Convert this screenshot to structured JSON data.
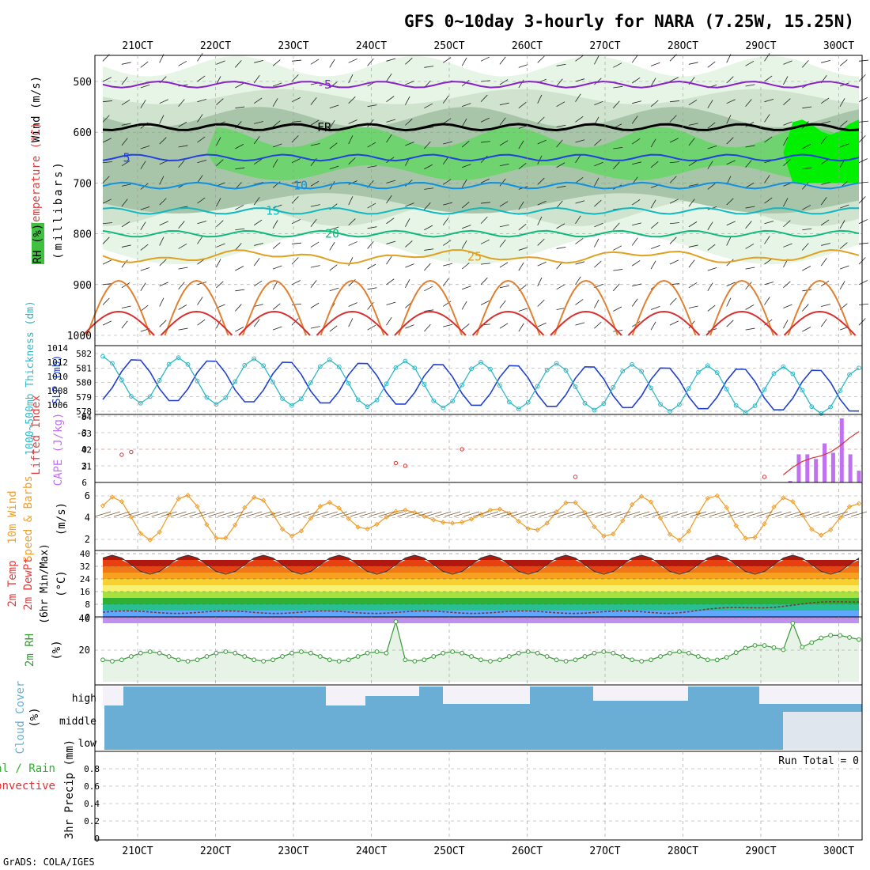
{
  "title": "GFS 0~10day 3-hourly for NARA (7.25W, 15.25N)",
  "credit": "GrADS: COLA/IGES",
  "x_ticks": [
    "21OCT",
    "22OCT",
    "23OCT",
    "24OCT",
    "25OCT",
    "26OCT",
    "27OCT",
    "28OCT",
    "29OCT",
    "30OCT"
  ],
  "colors": {
    "temp_contour": "#1a1aff",
    "rh_light": "#e6f5e6",
    "rh_mid": "#cfe3cf",
    "rh_dark": "#a9c5a9",
    "rh_green": "#6fd36f",
    "rh_bright": "#00f000",
    "slp": "#2040d0",
    "thickness": "#30b8c8",
    "lifted_index": "#d83030",
    "cape": "#c070f0",
    "wind10": "#f0a030",
    "temp2m_bands": [
      "#b0180f",
      "#e84010",
      "#f07818",
      "#f8a020",
      "#f8d030",
      "#f8f070",
      "#a8e040",
      "#30b030",
      "#28c090",
      "#60a8ff",
      "#4070f0",
      "#c090f0"
    ],
    "rh2m": "#3a9a3a",
    "cloud": "#6aaed6",
    "cloud_gap": "#f4f2f8",
    "precip_total": "#30b030",
    "precip_conv": "#e03030"
  },
  "labels": {
    "wind": "Wind (m/s)",
    "temperature": "Temperature (°C)",
    "rh_box": "RH (%)",
    "millibars": "(millibars)",
    "slp": "SLP (mb)",
    "thickness": "1000~500mb Thickness (dm)",
    "cape": "CAPE (J/kg)",
    "lifted_index": "Lifted Index",
    "wind10": "10m Wind",
    "speed_barbs": "Speed & Barbs",
    "ms": "(m/s)",
    "temp2m_1": "2m Temp",
    "temp2m_2": "2m DewPt",
    "temp2m_3": "(6hr Min/Max)",
    "degc": "(°C)",
    "rh2m": "2m RH",
    "pct": "(%)",
    "cloud_cover": "Cloud Cover",
    "precip_total": "Total / Rain",
    "precip_conv": "Convective",
    "precip_3hr": "3hr Precip (mm)",
    "run_total": "Run Total = 0"
  },
  "chart_data": [
    {
      "type": "heatmap",
      "panel": "upper-air",
      "y_ticks": [
        "500",
        "600",
        "700",
        "800",
        "900",
        "1000"
      ],
      "isotherms": [
        {
          "label": "-5",
          "color": "#8a20c8"
        },
        {
          "label": "FR",
          "color": "#000000"
        },
        {
          "label": "5",
          "color": "#2040e0"
        },
        {
          "label": "10",
          "color": "#1090e0"
        },
        {
          "label": "15",
          "color": "#10b8c0"
        },
        {
          "label": "20",
          "color": "#10b880"
        },
        {
          "label": "25",
          "color": "#e0a020"
        }
      ],
      "rh_contours": [
        "10",
        "30",
        "50"
      ]
    },
    {
      "type": "line",
      "panel": "slp-thickness",
      "y_left_ticks": [
        "582",
        "581",
        "580",
        "579",
        "578"
      ],
      "y_right_ticks": [
        "1014",
        "1012",
        "1010",
        "1008",
        "1006"
      ]
    },
    {
      "type": "bar",
      "panel": "cape-li",
      "y_left_ticks": [
        "-6",
        "-3",
        "0",
        "3",
        "6"
      ],
      "y_right_ticks": [
        "84",
        "63",
        "42",
        "21"
      ],
      "cape_values": [
        0,
        0,
        0,
        0,
        0,
        0,
        0,
        0,
        0,
        0,
        0,
        0,
        0,
        0,
        0,
        0,
        0,
        0,
        0,
        0,
        0,
        0,
        0,
        0,
        0,
        0,
        0,
        0,
        0,
        0,
        0,
        0,
        0,
        0,
        0,
        0,
        0,
        0,
        0,
        0,
        0,
        0,
        0,
        0,
        0,
        0,
        0,
        0,
        0,
        0,
        0,
        0,
        0,
        0,
        0,
        0,
        0,
        0,
        0,
        0,
        0,
        0,
        0,
        0,
        0,
        0,
        0,
        0,
        0,
        0,
        0,
        0,
        0,
        0,
        0,
        0,
        0,
        0,
        0,
        0,
        2,
        36,
        36,
        30,
        50,
        38,
        82,
        36,
        15
      ]
    },
    {
      "type": "line",
      "panel": "wind10",
      "y_ticks": [
        "6",
        "4",
        "2"
      ]
    },
    {
      "type": "area",
      "panel": "temp2m",
      "y_ticks": [
        "40",
        "32",
        "24",
        "16",
        "8",
        "0"
      ]
    },
    {
      "type": "line",
      "panel": "rh2m",
      "y_ticks": [
        "40",
        "20"
      ]
    },
    {
      "type": "bar",
      "panel": "cloud",
      "y_ticks": [
        "high",
        "middle",
        "low"
      ]
    },
    {
      "type": "bar",
      "panel": "precip",
      "y_ticks": [
        "0.8",
        "0.6",
        "0.4",
        "0.2",
        "0"
      ]
    }
  ]
}
